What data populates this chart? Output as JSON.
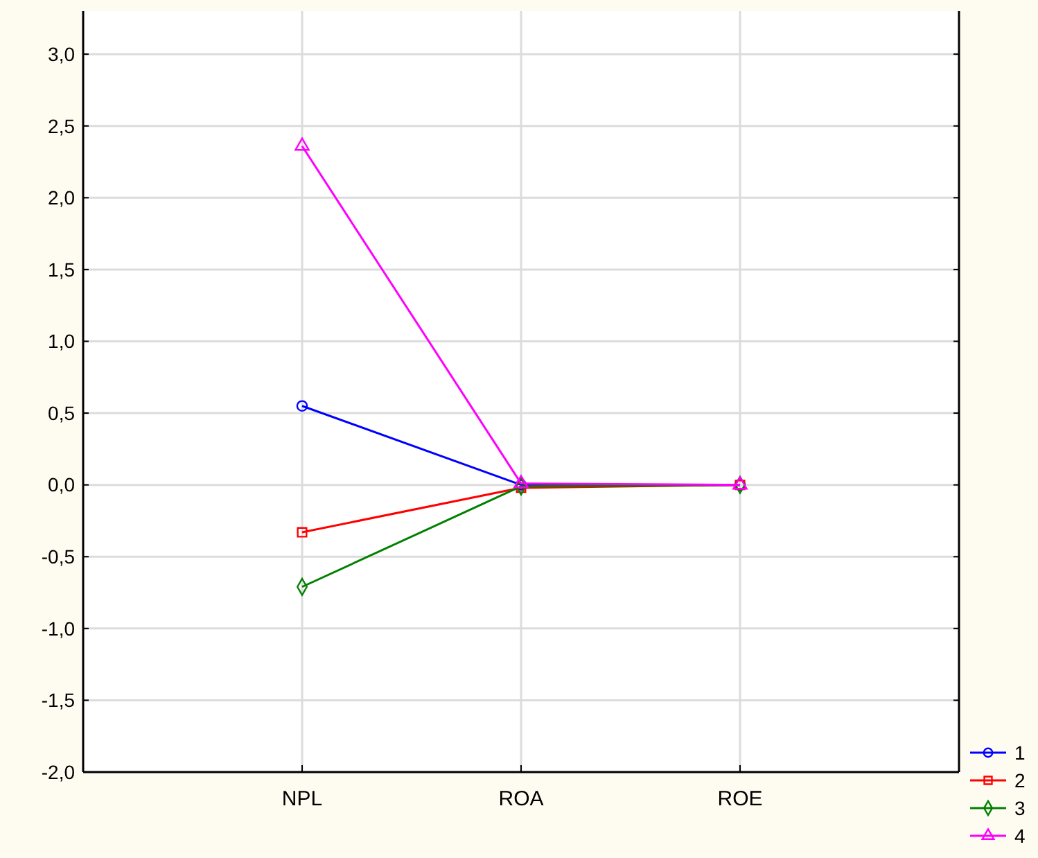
{
  "chart_data": {
    "type": "line",
    "categories": [
      "NPL",
      "ROA",
      "ROE"
    ],
    "series": [
      {
        "name": "1",
        "color": "#0000ff",
        "marker": "circle",
        "values": [
          0.55,
          0.0,
          0.0
        ]
      },
      {
        "name": "2",
        "color": "#ff0000",
        "marker": "square",
        "values": [
          -0.33,
          -0.02,
          0.0
        ]
      },
      {
        "name": "3",
        "color": "#008000",
        "marker": "diamond",
        "values": [
          -0.71,
          -0.01,
          0.0
        ]
      },
      {
        "name": "4",
        "color": "#ff00ff",
        "marker": "triangle",
        "values": [
          2.36,
          0.01,
          0.0
        ]
      }
    ],
    "ylim": [
      -2,
      3.3
    ],
    "yticks": [
      {
        "value": -2,
        "label": "-2,0"
      },
      {
        "value": -1.5,
        "label": "-1,5"
      },
      {
        "value": -1,
        "label": "-1,0"
      },
      {
        "value": -0.5,
        "label": "-0,5"
      },
      {
        "value": 0,
        "label": "0,0"
      },
      {
        "value": 0.5,
        "label": "0,5"
      },
      {
        "value": 1,
        "label": "1,0"
      },
      {
        "value": 1.5,
        "label": "1,5"
      },
      {
        "value": 2,
        "label": "2,0"
      },
      {
        "value": 2.5,
        "label": "2,5"
      },
      {
        "value": 3,
        "label": "3,0"
      }
    ],
    "grid": true,
    "legend": "bottom right",
    "line_style": "solid"
  }
}
